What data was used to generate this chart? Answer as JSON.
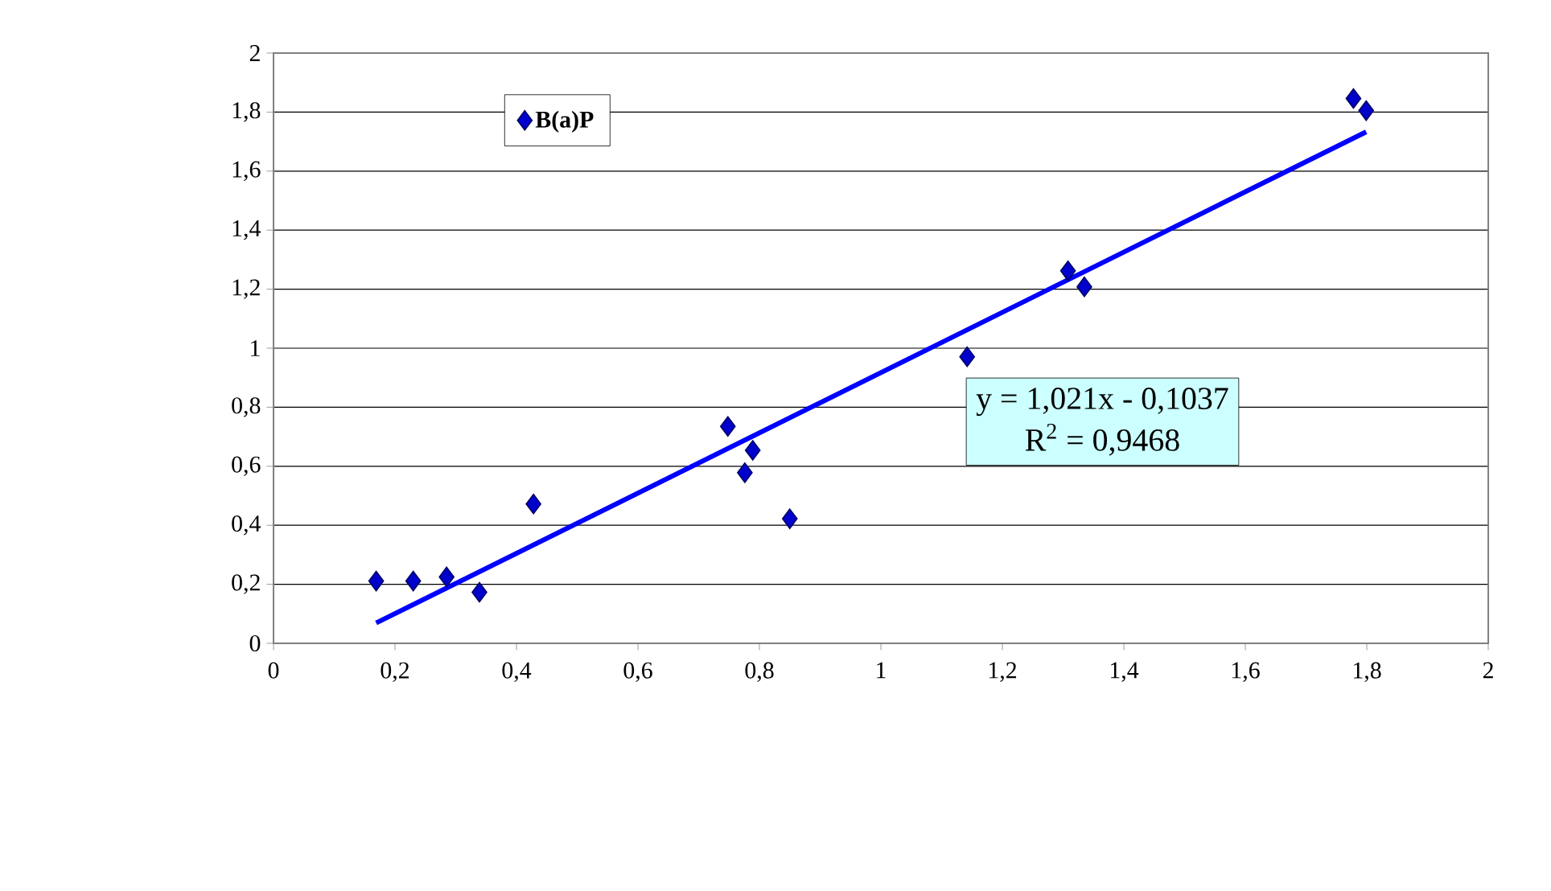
{
  "chart_data": {
    "type": "scatter",
    "marker": "diamond",
    "grid": "y",
    "legend": "top left",
    "xlim": [
      0,
      2
    ],
    "ylim": [
      0,
      2
    ],
    "xticks": [
      0,
      {
        "value": 0.2,
        "label": "0,2"
      },
      {
        "value": 0.4,
        "label": "0,4"
      },
      {
        "value": 0.6,
        "label": "0,6"
      },
      {
        "value": 0.8,
        "label": "0,8"
      },
      1,
      {
        "value": 1.2,
        "label": "1,2"
      },
      {
        "value": 1.4,
        "label": "1,4"
      },
      {
        "value": 1.6,
        "label": "1,6"
      },
      {
        "value": 1.8,
        "label": "1,8"
      },
      2
    ],
    "yticks": [
      0,
      {
        "value": 0.2,
        "label": "0,2"
      },
      {
        "value": 0.4,
        "label": "0,4"
      },
      {
        "value": 0.6,
        "label": "0,6"
      },
      {
        "value": 0.8,
        "label": "0,8"
      },
      1,
      {
        "value": 1.2,
        "label": "1,2"
      },
      {
        "value": 1.4,
        "label": "1,4"
      },
      {
        "value": 1.6,
        "label": "1,6"
      },
      {
        "value": 1.8,
        "label": "1,8"
      },
      2
    ],
    "series": [
      {
        "name": "B(a)P",
        "color": "#0000cc",
        "x": [
          0.169,
          0.23,
          0.285,
          0.339,
          0.428,
          0.748,
          0.789,
          0.776,
          0.85,
          1.142,
          1.308,
          1.335,
          1.778,
          1.799
        ],
        "values": [
          0.211,
          0.211,
          0.225,
          0.173,
          0.472,
          0.735,
          0.654,
          0.578,
          0.422,
          0.971,
          1.262,
          1.208,
          1.846,
          1.805
        ]
      },
      {
        "type": "line",
        "color": "#0000ff",
        "marker": "none",
        "line_style": "solid",
        "x": [
          0.169,
          1.799
        ],
        "values": [
          0.069,
          1.733
        ]
      }
    ],
    "annotations": [
      "y = 1,021x - 0,1037",
      "R$^{2}$ = 0,9468"
    ]
  }
}
